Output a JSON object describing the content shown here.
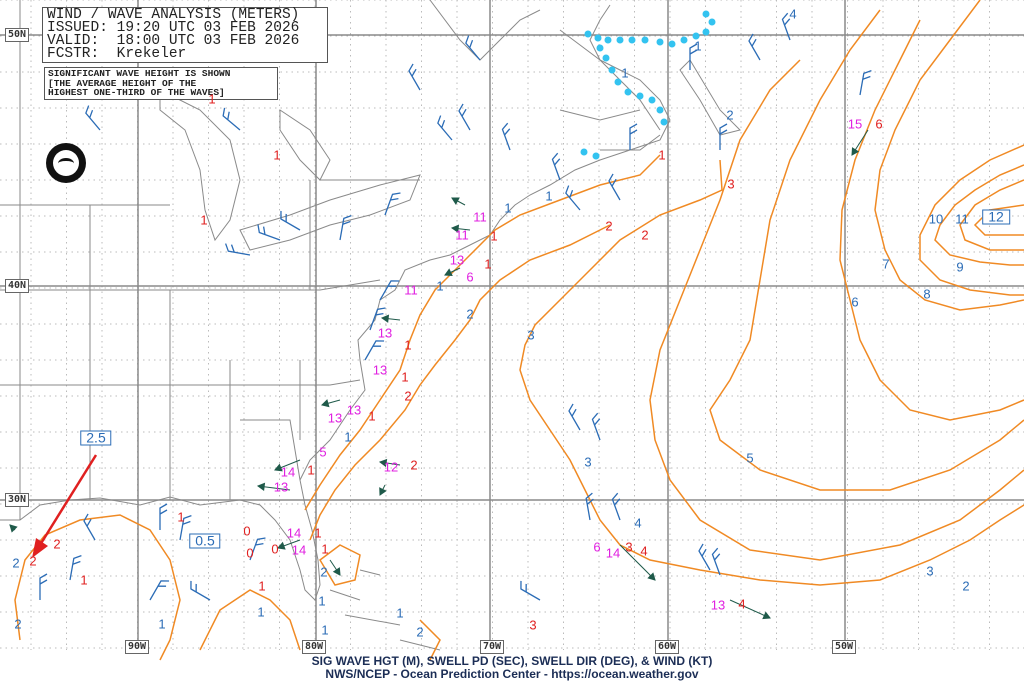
{
  "header": {
    "title": "WIND / WAVE ANALYSIS (METERS)",
    "issued": "ISSUED: 19:20 UTC 03 FEB 2026",
    "valid": "VALID:  18:00 UTC 03 FEB 2026",
    "forecaster": "FCSTR:  Krekeler"
  },
  "note": {
    "line1": "SIGNIFICANT WAVE HEIGHT IS SHOWN",
    "line2": "[THE AVERAGE HEIGHT OF THE",
    "line3": "HIGHEST ONE-THIRD OF THE WAVES]"
  },
  "logo_text": "NOAA",
  "lat_labels": [
    "50N",
    "40N",
    "30N"
  ],
  "lon_labels": [
    "90W",
    "80W",
    "70W",
    "60W",
    "50W"
  ],
  "footer": {
    "line1": "SIG WAVE HGT (M), SWELL PD (SEC), SWELL DIR (DEG), & WIND (KT)",
    "line2": "NWS/NCEP - Ocean Prediction Center - https://ocean.weather.gov"
  },
  "boxed_labels": [
    "2.5",
    "0.5",
    "12"
  ],
  "contour_labels": [
    "4",
    "1",
    "1",
    "2",
    "10",
    "11",
    "9",
    "7",
    "8",
    "6",
    "3",
    "2",
    "1",
    "1",
    "1",
    "5",
    "3",
    "4",
    "3",
    "2",
    "1",
    "1",
    "2",
    "1",
    "2",
    "1",
    "1",
    "1",
    "2",
    "2"
  ],
  "wave_heights": [
    "6",
    "3",
    "2",
    "2",
    "1",
    "1",
    "1",
    "1",
    "2",
    "2",
    "1",
    "1",
    "1",
    "1",
    "1",
    "1",
    "1",
    "1",
    "1",
    "1",
    "1",
    "0",
    "0",
    "0",
    "4",
    "3",
    "4",
    "3",
    "2",
    "2"
  ],
  "swell_periods": [
    "15",
    "11",
    "11",
    "13",
    "6",
    "11",
    "13",
    "13",
    "13",
    "13",
    "5",
    "14",
    "13",
    "14",
    "14",
    "12",
    "6",
    "14",
    "13"
  ],
  "colors": {
    "contour": "#f08a24",
    "contour_label": "#2b6cb6",
    "wave_height": "#e02020",
    "swell_period": "#e020e0",
    "wind_barb": "#2b6cb6",
    "swell_arrow": "#1f5a4a",
    "sea_ice": "#33c3f0",
    "annotation_arrow": "#e02020"
  }
}
